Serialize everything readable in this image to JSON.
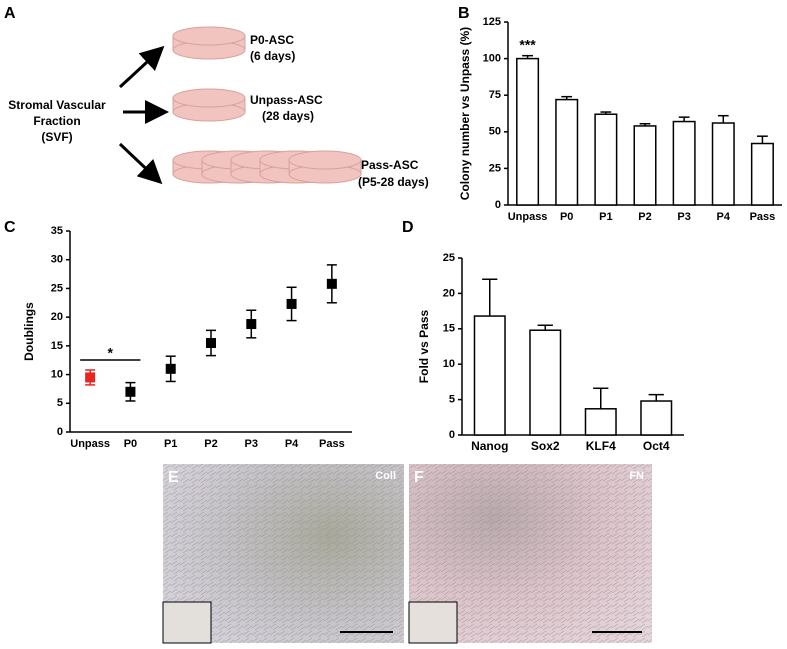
{
  "panel_labels": [
    "A",
    "B",
    "C",
    "D",
    "E",
    "F"
  ],
  "diagram": {
    "source": [
      "Stromal Vascular",
      "Fraction",
      "(SVF)"
    ],
    "outputs": [
      [
        "P0-ASC",
        "(6 days)"
      ],
      [
        "Unpass-ASC",
        "(28 days)"
      ],
      [
        "Pass-ASC",
        "(P5-28 days)"
      ]
    ]
  },
  "images": [
    "Coll",
    "FN"
  ],
  "chart_data": [
    {
      "type": "bar",
      "ylabel": "Colony number vs Unpass (%)",
      "categories": [
        "Unpass",
        "P0",
        "P1",
        "P2",
        "P3",
        "P4",
        "Pass"
      ],
      "values": [
        100,
        72,
        62,
        54,
        57,
        56,
        42
      ],
      "errors": [
        2,
        2,
        1.5,
        1.5,
        3,
        5,
        5
      ],
      "color": "#ffffff",
      "ylim": [
        0,
        125
      ],
      "yticks": [
        0,
        25,
        50,
        75,
        100,
        125
      ],
      "annotation": "***"
    },
    {
      "type": "scatter",
      "ylabel": "Doublings",
      "categories": [
        "Unpass",
        "P0",
        "P1",
        "P2",
        "P3",
        "P4",
        "Pass"
      ],
      "values": [
        9.5,
        7,
        11,
        15.5,
        18.8,
        22.3,
        25.8
      ],
      "errors": [
        1.3,
        1.6,
        2.2,
        2.2,
        2.4,
        2.9,
        3.3
      ],
      "colors": [
        "#e8251f",
        "#000000",
        "#000000",
        "#000000",
        "#000000",
        "#000000",
        "#000000"
      ],
      "ylim": [
        0,
        35
      ],
      "yticks": [
        0,
        5,
        10,
        15,
        20,
        25,
        30,
        35
      ],
      "annotation": "*"
    },
    {
      "type": "bar",
      "ylabel": "Fold vs Pass",
      "categories": [
        "Nanog",
        "Sox2",
        "KLF4",
        "Oct4"
      ],
      "values": [
        16.8,
        14.8,
        3.7,
        4.8
      ],
      "errors": [
        5.2,
        0.7,
        2.9,
        0.9
      ],
      "color": "#ffffff",
      "ylim": [
        0,
        25
      ],
      "yticks": [
        0,
        5,
        10,
        15,
        20,
        25
      ]
    }
  ]
}
